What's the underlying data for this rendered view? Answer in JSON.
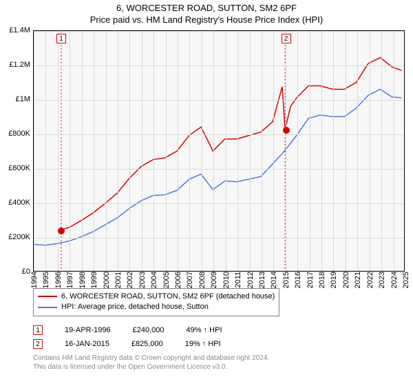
{
  "title": {
    "line1": "6, WORCESTER ROAD, SUTTON, SM2 6PF",
    "line2": "Price paid vs. HM Land Registry's House Price Index (HPI)"
  },
  "chart": {
    "type": "line",
    "background_color": "#f7f7f7",
    "grid_color": "#d8d8d8",
    "border_color": "#000000",
    "y": {
      "min": 0,
      "max": 1400000,
      "ticks": [
        0,
        200000,
        400000,
        600000,
        800000,
        1000000,
        1200000,
        1400000
      ],
      "labels": [
        "£0",
        "£200K",
        "£400K",
        "£600K",
        "£800K",
        "£1M",
        "£1.2M",
        "£1.4M"
      ],
      "label_fontsize": 11
    },
    "x": {
      "min": 1994,
      "max": 2025,
      "ticks": [
        1994,
        1995,
        1996,
        1997,
        1998,
        1999,
        2000,
        2001,
        2002,
        2003,
        2004,
        2005,
        2006,
        2007,
        2008,
        2009,
        2010,
        2011,
        2012,
        2013,
        2014,
        2015,
        2016,
        2017,
        2018,
        2019,
        2020,
        2021,
        2022,
        2023,
        2024,
        2025
      ],
      "labels": [
        "1994",
        "1995",
        "1996",
        "1997",
        "1998",
        "1999",
        "2000",
        "2001",
        "2002",
        "2003",
        "2004",
        "2005",
        "2006",
        "2007",
        "2008",
        "2009",
        "2010",
        "2011",
        "2012",
        "2013",
        "2014",
        "2015",
        "2016",
        "2017",
        "2018",
        "2019",
        "2020",
        "2021",
        "2022",
        "2023",
        "2024",
        "2025"
      ],
      "label_fontsize": 11,
      "label_rotation": -90
    },
    "series": [
      {
        "id": "property",
        "label": "6, WORCESTER ROAD, SUTTON, SM2 6PF (detached house)",
        "color": "#d40000",
        "line_width": 1.5,
        "points": [
          [
            1996.3,
            240000
          ],
          [
            1997,
            255000
          ],
          [
            1998,
            295000
          ],
          [
            1999,
            340000
          ],
          [
            2000,
            395000
          ],
          [
            2001,
            455000
          ],
          [
            2002,
            540000
          ],
          [
            2003,
            610000
          ],
          [
            2004,
            650000
          ],
          [
            2005,
            660000
          ],
          [
            2006,
            700000
          ],
          [
            2007,
            790000
          ],
          [
            2008,
            840000
          ],
          [
            2009,
            700000
          ],
          [
            2010,
            770000
          ],
          [
            2011,
            770000
          ],
          [
            2012,
            790000
          ],
          [
            2013,
            810000
          ],
          [
            2014,
            870000
          ],
          [
            2014.8,
            1075000
          ],
          [
            2015.04,
            825000
          ],
          [
            2015.5,
            960000
          ],
          [
            2016,
            1010000
          ],
          [
            2017,
            1080000
          ],
          [
            2018,
            1080000
          ],
          [
            2019,
            1060000
          ],
          [
            2020,
            1060000
          ],
          [
            2021,
            1100000
          ],
          [
            2022,
            1210000
          ],
          [
            2023,
            1245000
          ],
          [
            2024,
            1190000
          ],
          [
            2024.8,
            1170000
          ]
        ]
      },
      {
        "id": "hpi",
        "label": "HPI: Average price, detached house, Sutton",
        "color": "#4a7bd4",
        "line_width": 1.5,
        "points": [
          [
            1994,
            155000
          ],
          [
            1995,
            150000
          ],
          [
            1996,
            160000
          ],
          [
            1997,
            175000
          ],
          [
            1998,
            200000
          ],
          [
            1999,
            230000
          ],
          [
            2000,
            270000
          ],
          [
            2001,
            310000
          ],
          [
            2002,
            365000
          ],
          [
            2003,
            410000
          ],
          [
            2004,
            440000
          ],
          [
            2005,
            445000
          ],
          [
            2006,
            470000
          ],
          [
            2007,
            535000
          ],
          [
            2008,
            565000
          ],
          [
            2009,
            475000
          ],
          [
            2010,
            525000
          ],
          [
            2011,
            520000
          ],
          [
            2012,
            535000
          ],
          [
            2013,
            550000
          ],
          [
            2014,
            625000
          ],
          [
            2015,
            700000
          ],
          [
            2016,
            790000
          ],
          [
            2017,
            890000
          ],
          [
            2018,
            910000
          ],
          [
            2019,
            900000
          ],
          [
            2020,
            900000
          ],
          [
            2021,
            950000
          ],
          [
            2022,
            1025000
          ],
          [
            2023,
            1060000
          ],
          [
            2024,
            1015000
          ],
          [
            2024.8,
            1010000
          ]
        ]
      }
    ],
    "sale_markers": [
      {
        "index": "1",
        "year": 1996.3,
        "price": 240000,
        "dot_color": "#d40000",
        "box_border": "#d40000",
        "line_color": "#d40000",
        "line_dash": "2,3"
      },
      {
        "index": "2",
        "year": 2015.04,
        "price": 825000,
        "dot_color": "#d40000",
        "box_border": "#d40000",
        "line_color": "#d40000",
        "line_dash": "2,3"
      }
    ]
  },
  "legend": {
    "border_color": "#808080",
    "fontsize": 11
  },
  "sales": [
    {
      "marker": "1",
      "marker_border": "#d40000",
      "date": "19-APR-1996",
      "price": "£240,000",
      "delta": "49% ↑ HPI"
    },
    {
      "marker": "2",
      "marker_border": "#d40000",
      "date": "16-JAN-2015",
      "price": "£825,000",
      "delta": "19% ↑ HPI"
    }
  ],
  "footer": {
    "line1": "Contains HM Land Registry data © Crown copyright and database right 2024.",
    "line2": "This data is licensed under the Open Government Licence v3.0."
  }
}
